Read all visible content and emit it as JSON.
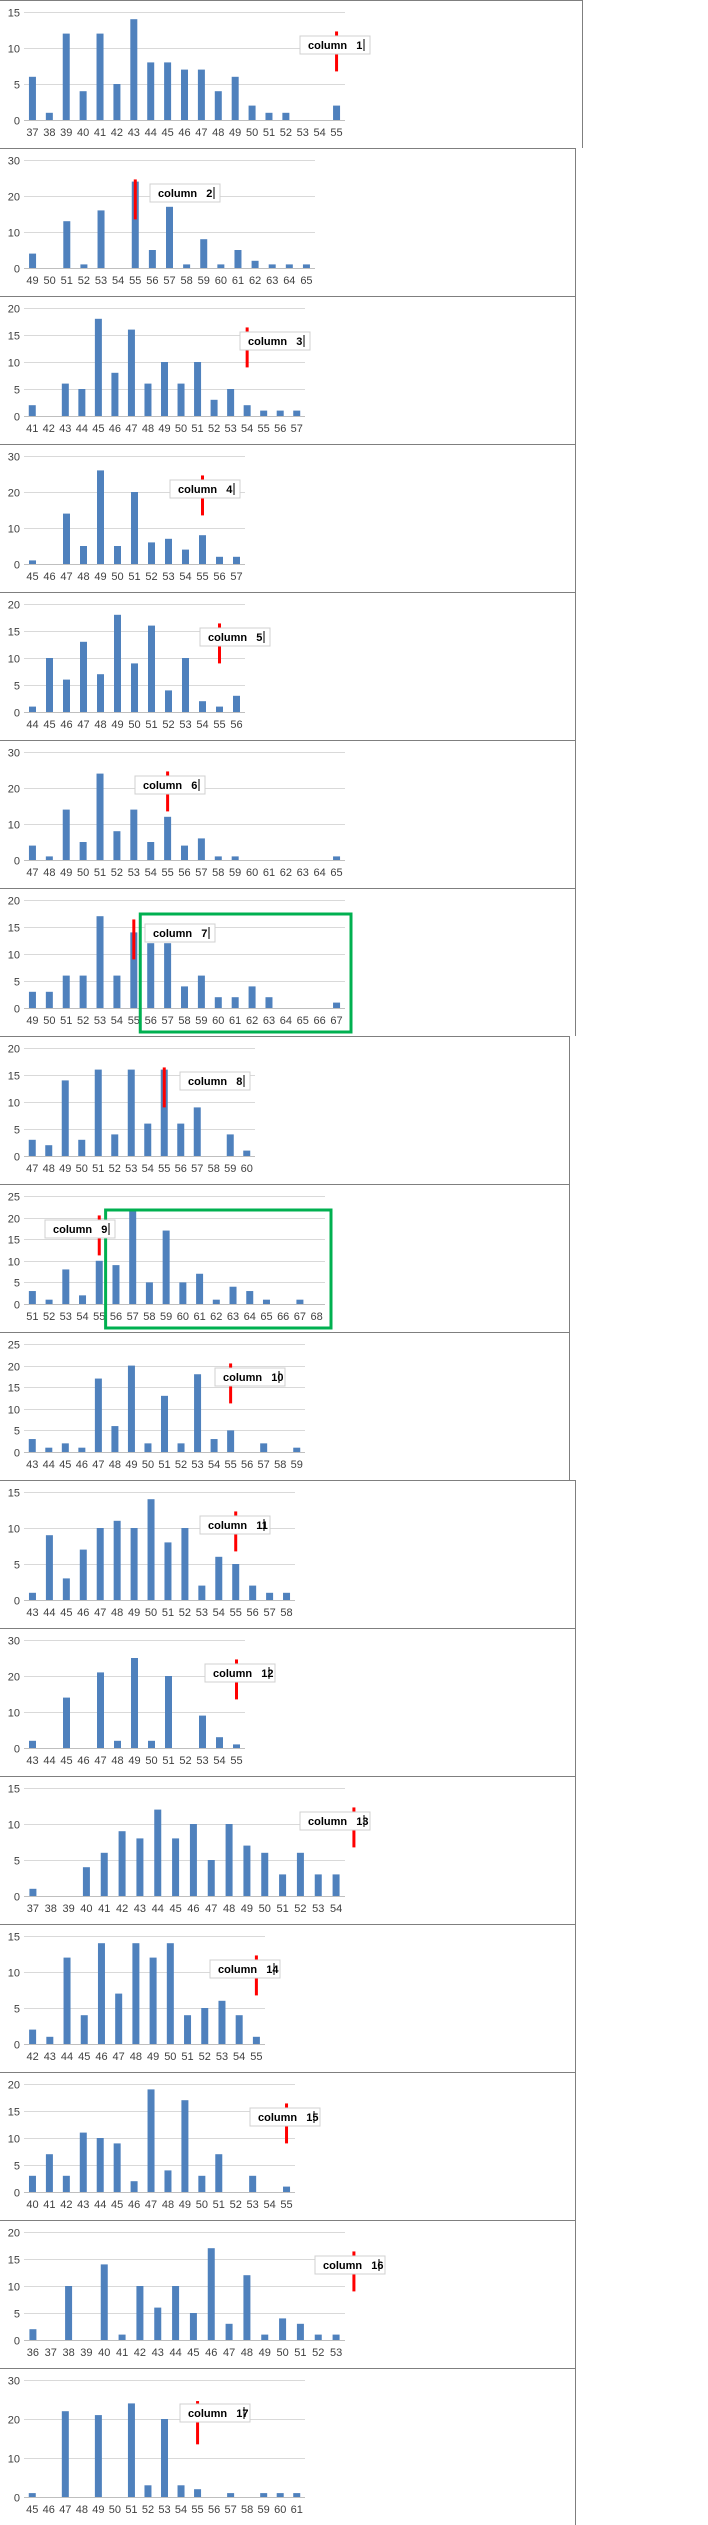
{
  "chart_data": [
    {
      "type": "bar",
      "annotation": "column   1",
      "colors": {
        "bar": "#4f81bd",
        "marker": "#ff0000",
        "highlight": "#00b050"
      },
      "grid": true,
      "y_ticks": [
        0,
        5,
        10,
        15
      ],
      "ylim": [
        0,
        15
      ],
      "categories": [
        "37",
        "38",
        "39",
        "40",
        "41",
        "42",
        "43",
        "44",
        "45",
        "46",
        "47",
        "48",
        "49",
        "50",
        "51",
        "52",
        "53",
        "54",
        "55"
      ],
      "values": [
        6,
        1,
        12,
        4,
        12,
        5,
        14,
        8,
        8,
        7,
        7,
        4,
        6,
        2,
        1,
        1,
        0,
        0,
        2
      ],
      "marker_at": "55",
      "highlight_range": null
    },
    {
      "type": "bar",
      "annotation": "column   2",
      "colors": {
        "bar": "#4f81bd",
        "marker": "#ff0000",
        "highlight": "#00b050"
      },
      "grid": true,
      "y_ticks": [
        0,
        10,
        20,
        30
      ],
      "ylim": [
        0,
        30
      ],
      "categories": [
        "49",
        "50",
        "51",
        "52",
        "53",
        "54",
        "55",
        "56",
        "57",
        "58",
        "59",
        "60",
        "61",
        "62",
        "63",
        "64",
        "65"
      ],
      "values": [
        4,
        0,
        13,
        1,
        16,
        0,
        24,
        5,
        17,
        1,
        8,
        1,
        5,
        2,
        1,
        1,
        1
      ],
      "marker_at": "55",
      "highlight_range": null
    },
    {
      "type": "bar",
      "annotation": "column   3",
      "colors": {
        "bar": "#4f81bd",
        "marker": "#ff0000",
        "highlight": "#00b050"
      },
      "grid": true,
      "y_ticks": [
        0,
        5,
        10,
        15,
        20
      ],
      "ylim": [
        0,
        20
      ],
      "categories": [
        "41",
        "42",
        "43",
        "44",
        "45",
        "46",
        "47",
        "48",
        "49",
        "50",
        "51",
        "52",
        "53",
        "54",
        "55",
        "56",
        "57"
      ],
      "values": [
        2,
        0,
        6,
        5,
        18,
        8,
        16,
        6,
        10,
        6,
        10,
        3,
        5,
        2,
        1,
        1,
        1
      ],
      "marker_at": "54",
      "highlight_range": null
    },
    {
      "type": "bar",
      "annotation": "column   4",
      "colors": {
        "bar": "#4f81bd",
        "marker": "#ff0000",
        "highlight": "#00b050"
      },
      "grid": true,
      "y_ticks": [
        0,
        10,
        20,
        30
      ],
      "ylim": [
        0,
        30
      ],
      "categories": [
        "45",
        "46",
        "47",
        "48",
        "49",
        "50",
        "51",
        "52",
        "53",
        "54",
        "55",
        "56",
        "57"
      ],
      "values": [
        1,
        0,
        14,
        5,
        26,
        5,
        20,
        6,
        7,
        4,
        8,
        2,
        2
      ],
      "marker_at": "55",
      "highlight_range": null
    },
    {
      "type": "bar",
      "annotation": "column   5",
      "colors": {
        "bar": "#4f81bd",
        "marker": "#ff0000",
        "highlight": "#00b050"
      },
      "grid": true,
      "y_ticks": [
        0,
        5,
        10,
        15,
        20
      ],
      "ylim": [
        0,
        20
      ],
      "categories": [
        "44",
        "45",
        "46",
        "47",
        "48",
        "49",
        "50",
        "51",
        "52",
        "53",
        "54",
        "55",
        "56"
      ],
      "values": [
        1,
        10,
        6,
        13,
        7,
        18,
        9,
        16,
        4,
        10,
        2,
        1,
        3
      ],
      "marker_at": "55",
      "highlight_range": null
    },
    {
      "type": "bar",
      "annotation": "column   6",
      "colors": {
        "bar": "#4f81bd",
        "marker": "#ff0000",
        "highlight": "#00b050"
      },
      "grid": true,
      "y_ticks": [
        0,
        10,
        20,
        30
      ],
      "ylim": [
        0,
        30
      ],
      "categories": [
        "47",
        "48",
        "49",
        "50",
        "51",
        "52",
        "53",
        "54",
        "55",
        "56",
        "57",
        "58",
        "59",
        "60",
        "61",
        "62",
        "63",
        "64",
        "65"
      ],
      "values": [
        4,
        1,
        14,
        5,
        24,
        8,
        14,
        5,
        12,
        4,
        6,
        1,
        1,
        0,
        0,
        0,
        0,
        0,
        1
      ],
      "marker_at": "55",
      "highlight_range": null
    },
    {
      "type": "bar",
      "annotation": "column   7",
      "colors": {
        "bar": "#4f81bd",
        "marker": "#ff0000",
        "highlight": "#00b050"
      },
      "grid": true,
      "y_ticks": [
        0,
        5,
        10,
        15,
        20
      ],
      "ylim": [
        0,
        20
      ],
      "categories": [
        "49",
        "50",
        "51",
        "52",
        "53",
        "54",
        "55",
        "56",
        "57",
        "58",
        "59",
        "60",
        "61",
        "62",
        "63",
        "64",
        "65",
        "66",
        "67"
      ],
      "values": [
        3,
        3,
        6,
        6,
        17,
        6,
        14,
        12,
        12,
        4,
        6,
        2,
        2,
        4,
        2,
        0,
        0,
        0,
        1
      ],
      "marker_at": "55",
      "highlight_range": [
        "56",
        "67"
      ]
    },
    {
      "type": "bar",
      "annotation": "column   8",
      "colors": {
        "bar": "#4f81bd",
        "marker": "#ff0000",
        "highlight": "#00b050"
      },
      "grid": true,
      "y_ticks": [
        0,
        5,
        10,
        15,
        20
      ],
      "ylim": [
        0,
        20
      ],
      "categories": [
        "47",
        "48",
        "49",
        "50",
        "51",
        "52",
        "53",
        "54",
        "55",
        "56",
        "57",
        "58",
        "59",
        "60"
      ],
      "values": [
        3,
        2,
        14,
        3,
        16,
        4,
        16,
        6,
        16,
        6,
        9,
        0,
        4,
        1
      ],
      "marker_at": "55",
      "highlight_range": null
    },
    {
      "type": "bar",
      "annotation": "column   9",
      "colors": {
        "bar": "#4f81bd",
        "marker": "#ff0000",
        "highlight": "#00b050"
      },
      "grid": true,
      "y_ticks": [
        0,
        5,
        10,
        15,
        20,
        25
      ],
      "ylim": [
        0,
        25
      ],
      "categories": [
        "51",
        "52",
        "53",
        "54",
        "55",
        "56",
        "57",
        "58",
        "59",
        "60",
        "61",
        "62",
        "63",
        "64",
        "65",
        "66",
        "67",
        "68"
      ],
      "values": [
        3,
        1,
        8,
        2,
        10,
        9,
        22,
        5,
        17,
        5,
        7,
        1,
        4,
        3,
        1,
        0,
        1,
        0
      ],
      "marker_at": "55",
      "highlight_range": [
        "56",
        "68"
      ]
    },
    {
      "type": "bar",
      "annotation": "column   10",
      "colors": {
        "bar": "#4f81bd",
        "marker": "#ff0000",
        "highlight": "#00b050"
      },
      "grid": true,
      "y_ticks": [
        0,
        5,
        10,
        15,
        20,
        25
      ],
      "ylim": [
        0,
        25
      ],
      "categories": [
        "43",
        "44",
        "45",
        "46",
        "47",
        "48",
        "49",
        "50",
        "51",
        "52",
        "53",
        "54",
        "55",
        "56",
        "57",
        "58",
        "59"
      ],
      "values": [
        3,
        1,
        2,
        1,
        17,
        6,
        20,
        2,
        13,
        2,
        18,
        3,
        5,
        0,
        2,
        0,
        1
      ],
      "marker_at": "55",
      "highlight_range": null
    },
    {
      "type": "bar",
      "annotation": "column   11",
      "colors": {
        "bar": "#4f81bd",
        "marker": "#ff0000",
        "highlight": "#00b050"
      },
      "grid": true,
      "y_ticks": [
        0,
        5,
        10,
        15
      ],
      "ylim": [
        0,
        15
      ],
      "categories": [
        "43",
        "44",
        "45",
        "46",
        "47",
        "48",
        "49",
        "50",
        "51",
        "52",
        "53",
        "54",
        "55",
        "56",
        "57",
        "58"
      ],
      "values": [
        1,
        9,
        3,
        7,
        10,
        11,
        10,
        14,
        8,
        10,
        2,
        6,
        5,
        2,
        1,
        1
      ],
      "marker_at": "55",
      "highlight_range": null
    },
    {
      "type": "bar",
      "annotation": "column   12",
      "colors": {
        "bar": "#4f81bd",
        "marker": "#ff0000",
        "highlight": "#00b050"
      },
      "grid": true,
      "y_ticks": [
        0,
        10,
        20,
        30
      ],
      "ylim": [
        0,
        30
      ],
      "categories": [
        "43",
        "44",
        "45",
        "46",
        "47",
        "48",
        "49",
        "50",
        "51",
        "52",
        "53",
        "54",
        "55"
      ],
      "values": [
        2,
        0,
        14,
        0,
        21,
        2,
        25,
        2,
        20,
        0,
        9,
        3,
        1
      ],
      "marker_at": "55",
      "highlight_range": null
    },
    {
      "type": "bar",
      "annotation": "column   13",
      "colors": {
        "bar": "#4f81bd",
        "marker": "#ff0000",
        "highlight": "#00b050"
      },
      "grid": true,
      "y_ticks": [
        0,
        5,
        10,
        15
      ],
      "ylim": [
        0,
        15
      ],
      "categories": [
        "37",
        "38",
        "39",
        "40",
        "41",
        "42",
        "43",
        "44",
        "45",
        "46",
        "47",
        "48",
        "49",
        "50",
        "51",
        "52",
        "53",
        "54"
      ],
      "values": [
        1,
        0,
        0,
        4,
        6,
        9,
        8,
        12,
        8,
        10,
        5,
        10,
        7,
        6,
        3,
        6,
        3,
        3
      ],
      "marker_at": "55",
      "highlight_range": null
    },
    {
      "type": "bar",
      "annotation": "column   14",
      "colors": {
        "bar": "#4f81bd",
        "marker": "#ff0000",
        "highlight": "#00b050"
      },
      "grid": true,
      "y_ticks": [
        0,
        5,
        10,
        15
      ],
      "ylim": [
        0,
        15
      ],
      "categories": [
        "42",
        "43",
        "44",
        "45",
        "46",
        "47",
        "48",
        "49",
        "50",
        "51",
        "52",
        "53",
        "54",
        "55"
      ],
      "values": [
        2,
        1,
        12,
        4,
        14,
        7,
        14,
        12,
        14,
        4,
        5,
        6,
        4,
        1
      ],
      "marker_at": "55",
      "highlight_range": null
    },
    {
      "type": "bar",
      "annotation": "column   15",
      "colors": {
        "bar": "#4f81bd",
        "marker": "#ff0000",
        "highlight": "#00b050"
      },
      "grid": true,
      "y_ticks": [
        0,
        5,
        10,
        15,
        20
      ],
      "ylim": [
        0,
        20
      ],
      "categories": [
        "40",
        "41",
        "42",
        "43",
        "44",
        "45",
        "46",
        "47",
        "48",
        "49",
        "50",
        "51",
        "52",
        "53",
        "54",
        "55"
      ],
      "values": [
        3,
        7,
        3,
        11,
        10,
        9,
        2,
        19,
        4,
        17,
        3,
        7,
        0,
        3,
        0,
        1
      ],
      "marker_at": "55",
      "highlight_range": null
    },
    {
      "type": "bar",
      "annotation": "column   16",
      "colors": {
        "bar": "#4f81bd",
        "marker": "#ff0000",
        "highlight": "#00b050"
      },
      "grid": true,
      "y_ticks": [
        0,
        5,
        10,
        15,
        20
      ],
      "ylim": [
        0,
        20
      ],
      "categories": [
        "36",
        "37",
        "38",
        "39",
        "40",
        "41",
        "42",
        "43",
        "44",
        "45",
        "46",
        "47",
        "48",
        "49",
        "50",
        "51",
        "52",
        "53"
      ],
      "values": [
        2,
        0,
        10,
        0,
        14,
        1,
        10,
        6,
        10,
        5,
        17,
        3,
        12,
        1,
        4,
        3,
        1,
        1
      ],
      "marker_at": "55",
      "highlight_range": null
    },
    {
      "type": "bar",
      "annotation": "column   17",
      "colors": {
        "bar": "#4f81bd",
        "marker": "#ff0000",
        "highlight": "#00b050"
      },
      "grid": true,
      "y_ticks": [
        0,
        10,
        20,
        30
      ],
      "ylim": [
        0,
        30
      ],
      "categories": [
        "45",
        "46",
        "47",
        "48",
        "49",
        "50",
        "51",
        "52",
        "53",
        "54",
        "55",
        "56",
        "57",
        "58",
        "59",
        "60",
        "61"
      ],
      "values": [
        1,
        0,
        22,
        0,
        21,
        0,
        24,
        3,
        20,
        3,
        2,
        0,
        1,
        0,
        1,
        1,
        1
      ],
      "marker_at": "55",
      "highlight_range": null
    }
  ]
}
